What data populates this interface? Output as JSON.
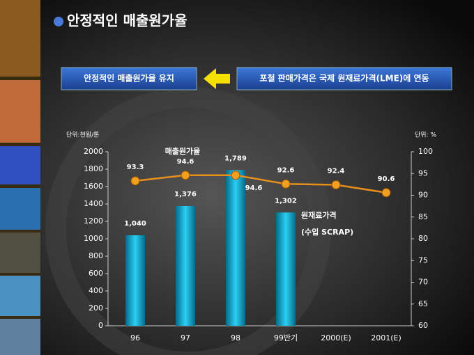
{
  "header": {
    "title": "안정적인 매출원가율"
  },
  "callouts": {
    "left": "안정적인 매출원가율 유지",
    "right": "포철 판매가격은 국제 원재료가격(LME)에 연동"
  },
  "chart_data": {
    "type": "bar-line",
    "y_unit_label": "단위:천원/톤",
    "y2_unit_label": "단위: %",
    "categories": [
      "96",
      "97",
      "98",
      "99반기",
      "2000(E)",
      "2001(E)"
    ],
    "series": [
      {
        "name": "원재료가격",
        "color": "#1ab4dc",
        "values": [
          1040,
          1376,
          1789,
          1302,
          null,
          null
        ],
        "value_labels": [
          "1,040",
          "1,376",
          "1,789",
          "1,302",
          null,
          null
        ]
      },
      {
        "name": "매출원가율",
        "color": "#f0a020",
        "axis": "y2",
        "values": [
          93.3,
          94.6,
          94.6,
          92.6,
          92.4,
          90.6
        ]
      }
    ],
    "annotations": [
      "(수입 SCRAP)"
    ],
    "ylim": [
      0,
      2000
    ],
    "yticks": [
      0,
      200,
      400,
      600,
      800,
      1000,
      1200,
      1400,
      1600,
      1800,
      2000
    ],
    "y2lim": [
      60,
      100
    ],
    "y2ticks": [
      60,
      65,
      70,
      75,
      80,
      85,
      90,
      95,
      100
    ]
  }
}
